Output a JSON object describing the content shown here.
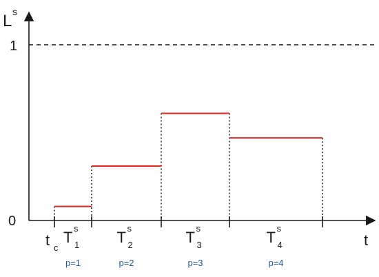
{
  "axes": {
    "y_label": "L",
    "y_label_sup": "s",
    "x_label": "t",
    "y_tick_one": "1",
    "y_tick_zero": "0"
  },
  "origin_label": {
    "main": "t",
    "sub": "c"
  },
  "intervals": [
    {
      "label": "T",
      "sup": "s",
      "sub": "1",
      "p_label": "p=1",
      "level": 0.08
    },
    {
      "label": "T",
      "sup": "s",
      "sub": "2",
      "p_label": "p=2",
      "level": 0.31
    },
    {
      "label": "T",
      "sup": "s",
      "sub": "3",
      "p_label": "p=3",
      "level": 0.61
    },
    {
      "label": "T",
      "sup": "s",
      "sub": "4",
      "p_label": "p=4",
      "level": 0.47
    }
  ],
  "reference_line": {
    "value": 1,
    "style": "dashed"
  },
  "colors": {
    "step": "#e8221b",
    "axis": "#1a1a1a",
    "p_label": "#1f5aa6"
  }
}
